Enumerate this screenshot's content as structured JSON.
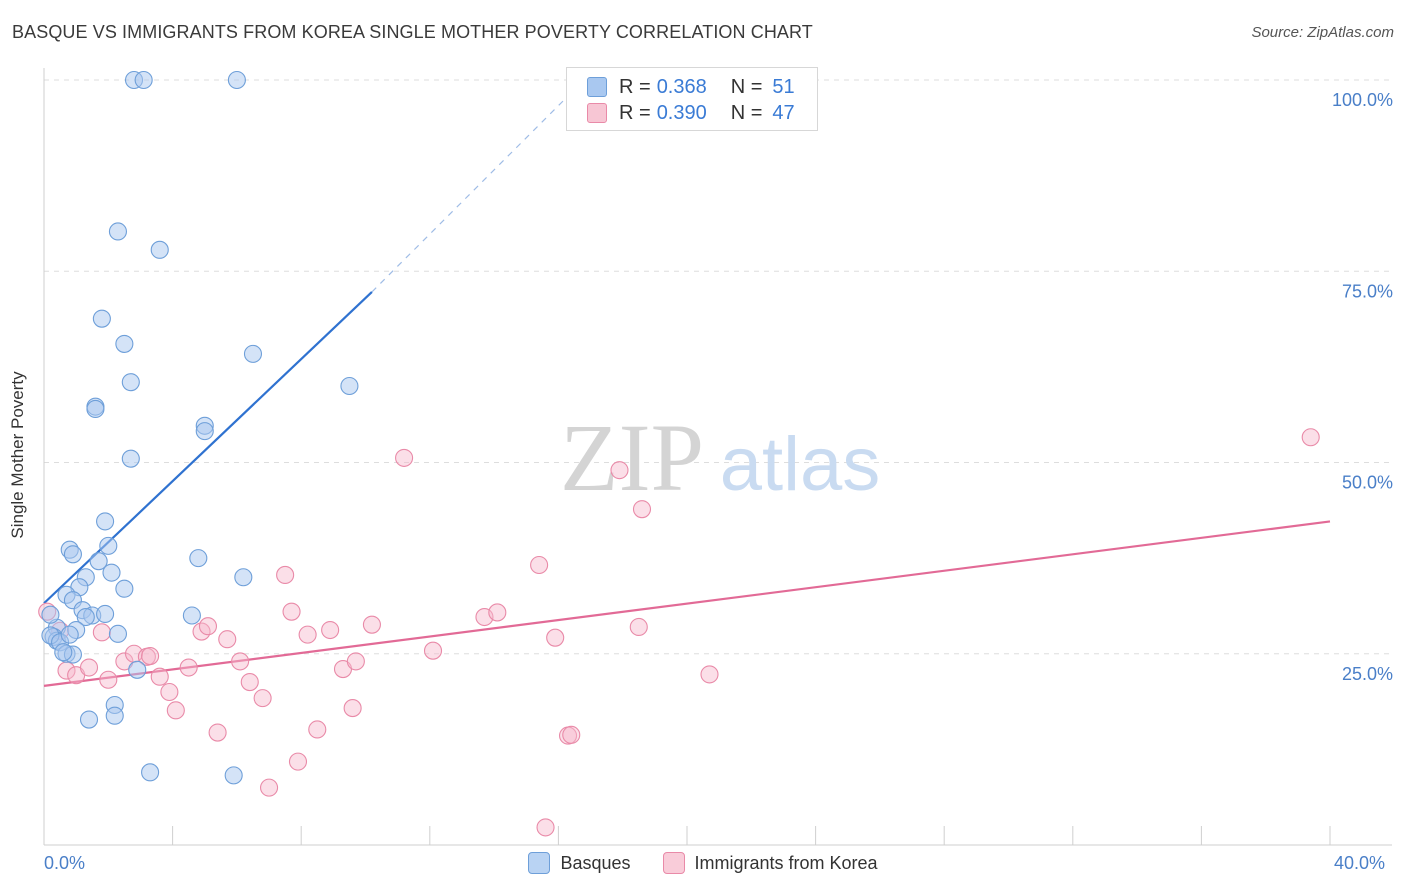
{
  "header": {
    "title": "BASQUE VS IMMIGRANTS FROM KOREA SINGLE MOTHER POVERTY CORRELATION CHART",
    "source": "Source: ZipAtlas.com"
  },
  "watermark": {
    "zip": "ZIP",
    "atlas": "atlas"
  },
  "legend": {
    "rows": [
      {
        "r_label": "R =",
        "r_value": "0.368",
        "n_label": "N =",
        "n_value": "51"
      },
      {
        "r_label": "R =",
        "r_value": "0.390",
        "n_label": "N =",
        "n_value": "47"
      }
    ]
  },
  "colors": {
    "blue_fill": "#a9c8f0",
    "blue_stroke": "#6e9fd9",
    "blue_line": "#2f72d0",
    "pink_fill": "#f7b8cb",
    "pink_stroke": "#e98aa8",
    "pink_line": "#e26a96",
    "tick_text": "#4a7fc8",
    "grid": "#dddddd"
  },
  "chart_data": {
    "type": "scatter",
    "title": "BASQUE VS IMMIGRANTS FROM KOREA SINGLE MOTHER POVERTY CORRELATION CHART",
    "xlabel": "",
    "ylabel": "Single Mother Poverty",
    "xlim": [
      0,
      40
    ],
    "ylim": [
      0,
      100
    ],
    "x_tick_labels": [
      "0.0%",
      "40.0%"
    ],
    "y_ticks": [
      25,
      50,
      75,
      100
    ],
    "y_tick_labels": [
      "25.0%",
      "50.0%",
      "75.0%",
      "100.0%"
    ],
    "legend_position": "bottom-center",
    "series": [
      {
        "name": "Basques",
        "color": "#a9c8f0",
        "points": [
          [
            2.8,
            100
          ],
          [
            3.1,
            100
          ],
          [
            6.0,
            100
          ],
          [
            2.3,
            80.2
          ],
          [
            3.6,
            77.8
          ],
          [
            1.8,
            68.8
          ],
          [
            2.5,
            65.5
          ],
          [
            6.5,
            64.2
          ],
          [
            2.7,
            60.5
          ],
          [
            9.5,
            60.0
          ],
          [
            1.6,
            57.3
          ],
          [
            1.6,
            57.0
          ],
          [
            5.0,
            54.8
          ],
          [
            5.0,
            54.1
          ],
          [
            2.7,
            50.5
          ],
          [
            1.9,
            42.3
          ],
          [
            2.0,
            39.1
          ],
          [
            0.8,
            38.6
          ],
          [
            0.9,
            38.0
          ],
          [
            4.8,
            37.5
          ],
          [
            1.7,
            37.1
          ],
          [
            2.1,
            35.6
          ],
          [
            1.3,
            35.0
          ],
          [
            6.2,
            35.0
          ],
          [
            1.1,
            33.7
          ],
          [
            2.5,
            33.5
          ],
          [
            0.7,
            32.7
          ],
          [
            0.9,
            32.0
          ],
          [
            1.2,
            30.7
          ],
          [
            1.5,
            30.0
          ],
          [
            1.3,
            29.8
          ],
          [
            1.9,
            30.2
          ],
          [
            4.6,
            30.0
          ],
          [
            0.4,
            28.4
          ],
          [
            1.0,
            28.1
          ],
          [
            2.3,
            27.6
          ],
          [
            0.3,
            27.2
          ],
          [
            0.4,
            26.7
          ],
          [
            0.2,
            27.4
          ],
          [
            0.5,
            26.5
          ],
          [
            0.7,
            25.0
          ],
          [
            0.9,
            24.9
          ],
          [
            0.6,
            25.2
          ],
          [
            2.9,
            22.9
          ],
          [
            2.2,
            18.3
          ],
          [
            2.2,
            16.9
          ],
          [
            1.4,
            16.4
          ],
          [
            3.3,
            9.5
          ],
          [
            5.9,
            9.1
          ],
          [
            0.2,
            30.1
          ],
          [
            0.8,
            27.5
          ]
        ]
      },
      {
        "name": "Immigrants from Korea",
        "color": "#f7b8cb",
        "points": [
          [
            0.1,
            30.5
          ],
          [
            0.5,
            28.0
          ],
          [
            1.8,
            27.8
          ],
          [
            2.5,
            24.0
          ],
          [
            2.8,
            25.0
          ],
          [
            3.2,
            24.6
          ],
          [
            3.3,
            24.7
          ],
          [
            0.7,
            22.8
          ],
          [
            1.0,
            22.2
          ],
          [
            1.4,
            23.2
          ],
          [
            2.0,
            21.6
          ],
          [
            3.6,
            22.0
          ],
          [
            3.9,
            20.0
          ],
          [
            4.1,
            17.6
          ],
          [
            4.5,
            23.2
          ],
          [
            4.9,
            27.9
          ],
          [
            5.1,
            28.6
          ],
          [
            5.4,
            14.7
          ],
          [
            5.7,
            26.9
          ],
          [
            6.1,
            24.0
          ],
          [
            6.4,
            21.3
          ],
          [
            6.8,
            19.2
          ],
          [
            7.0,
            7.5
          ],
          [
            7.5,
            35.3
          ],
          [
            7.7,
            30.5
          ],
          [
            7.9,
            10.9
          ],
          [
            8.2,
            27.5
          ],
          [
            8.5,
            15.1
          ],
          [
            8.9,
            28.1
          ],
          [
            9.3,
            23.0
          ],
          [
            9.6,
            17.9
          ],
          [
            9.7,
            24.0
          ],
          [
            10.2,
            28.8
          ],
          [
            11.2,
            50.6
          ],
          [
            12.1,
            25.4
          ],
          [
            13.7,
            29.8
          ],
          [
            14.1,
            30.4
          ],
          [
            15.4,
            36.6
          ],
          [
            15.6,
            2.3
          ],
          [
            15.9,
            27.1
          ],
          [
            16.3,
            14.3
          ],
          [
            16.4,
            14.4
          ],
          [
            17.9,
            49.0
          ],
          [
            18.5,
            28.5
          ],
          [
            18.6,
            43.9
          ],
          [
            20.7,
            22.3
          ],
          [
            39.4,
            53.3
          ]
        ]
      }
    ],
    "trend_lines": [
      {
        "series": "Basques",
        "x": [
          0.0,
          10.2
        ],
        "y": [
          31.6,
          72.3
        ],
        "dashed_extension_to": [
          16.8,
          100.0
        ]
      },
      {
        "series": "Immigrants from Korea",
        "x": [
          0.0,
          40.0
        ],
        "y": [
          20.8,
          42.3
        ]
      }
    ]
  },
  "bottom_legend": {
    "items": [
      {
        "label": "Basques"
      },
      {
        "label": "Immigrants from Korea"
      }
    ]
  }
}
